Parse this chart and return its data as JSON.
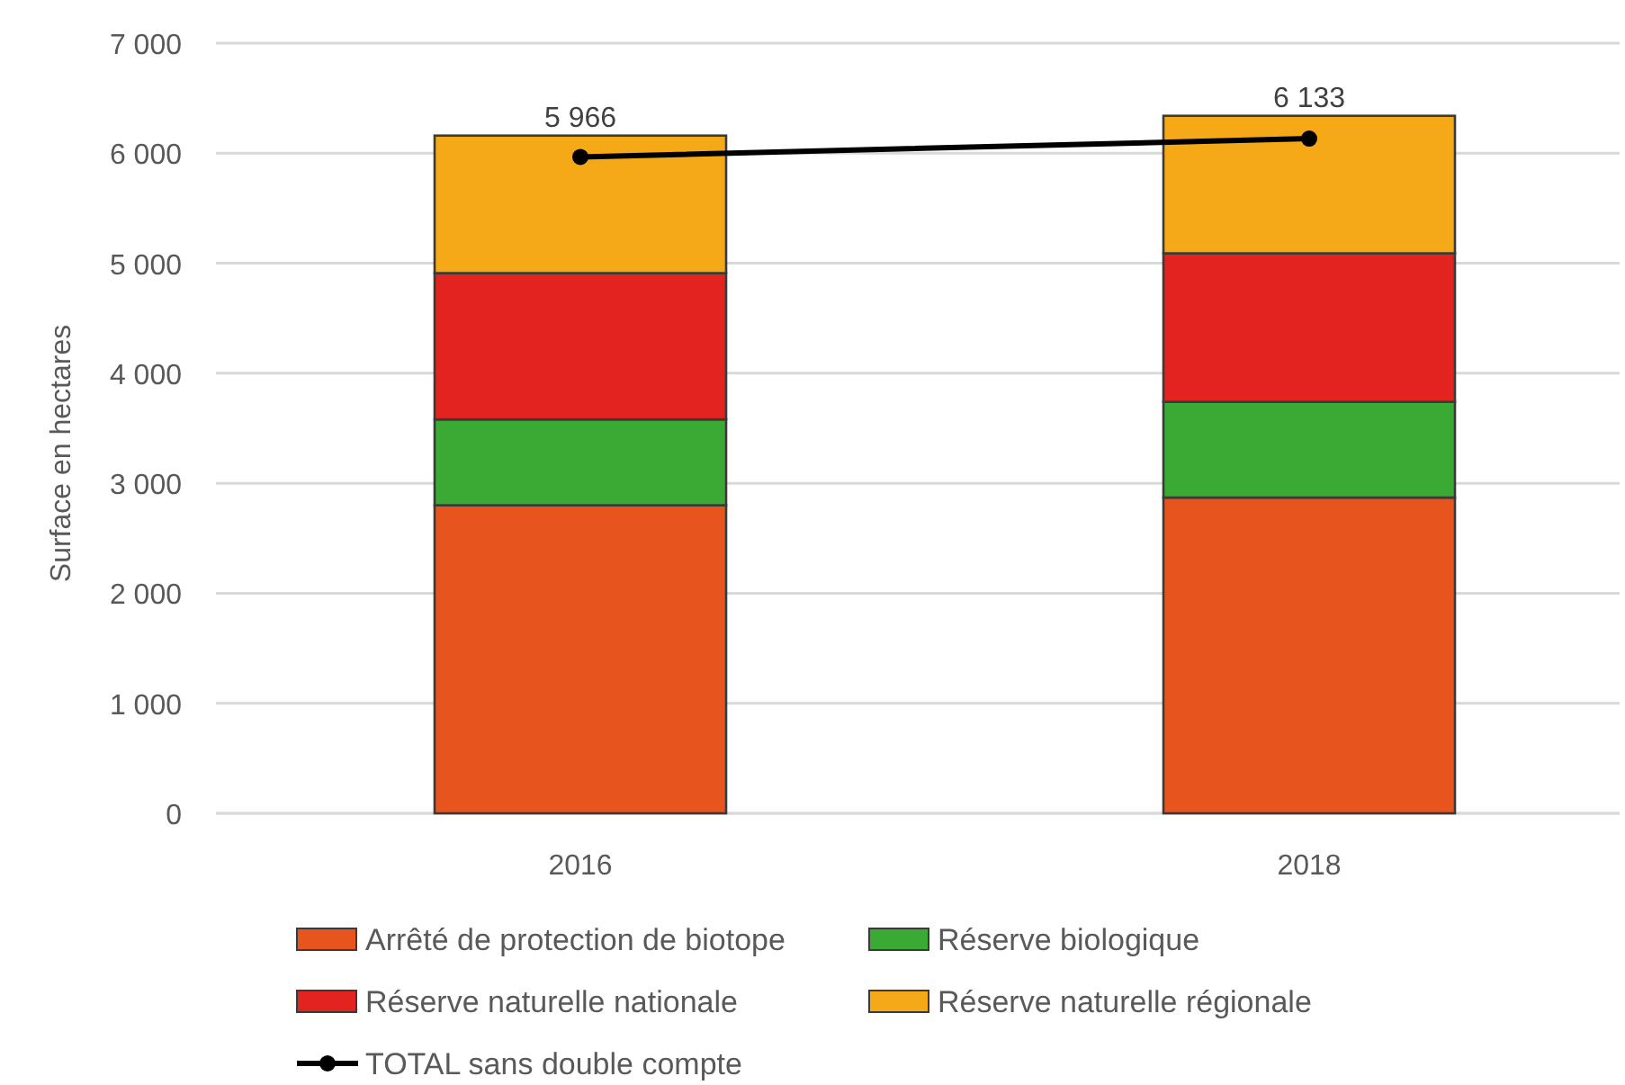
{
  "chart_data": {
    "type": "bar",
    "stacked": true,
    "ylabel": "Surface en hectares",
    "categories": [
      "2016",
      "2018"
    ],
    "series": [
      {
        "name": "Arrêté de protection de biotope",
        "color": "#e8541e",
        "values": [
          2800,
          2870
        ]
      },
      {
        "name": "Réserve biologique",
        "color": "#3aaa35",
        "values": [
          780,
          870
        ]
      },
      {
        "name": "Réserve naturelle nationale",
        "color": "#e2231f",
        "values": [
          1330,
          1350
        ]
      },
      {
        "name": "Réserve naturelle régionale",
        "color": "#f5a917",
        "values": [
          1250,
          1250
        ]
      },
      {
        "name": "TOTAL sans double compte",
        "type": "line",
        "color": "#000000",
        "values": [
          5966,
          6133
        ],
        "value_labels": [
          "5 966",
          "6 133"
        ]
      }
    ],
    "ylim": [
      0,
      7000
    ],
    "yticks": [
      0,
      {
        "value": 1000,
        "label": "1 000"
      },
      {
        "value": 2000,
        "label": "2 000"
      },
      {
        "value": 3000,
        "label": "3 000"
      },
      {
        "value": 4000,
        "label": "4 000"
      },
      {
        "value": 5000,
        "label": "5 000"
      },
      {
        "value": 6000,
        "label": "6 000"
      },
      {
        "value": 7000,
        "label": "7 000"
      }
    ],
    "grid": "y",
    "legend": "bottom",
    "marker": "circle"
  }
}
